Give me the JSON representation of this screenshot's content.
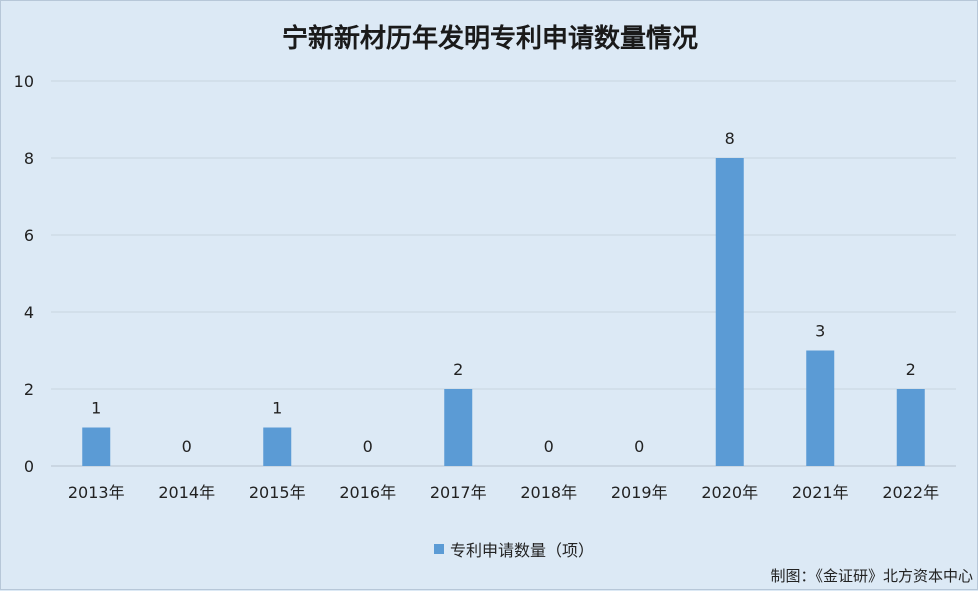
{
  "chart_data": {
    "type": "bar",
    "title": "宁新新材历年发明专利申请数量情况",
    "categories": [
      "2013年",
      "2014年",
      "2015年",
      "2016年",
      "2017年",
      "2018年",
      "2019年",
      "2020年",
      "2021年",
      "2022年"
    ],
    "series": [
      {
        "name": "专利申请数量（项）",
        "values": [
          1,
          0,
          1,
          0,
          2,
          0,
          0,
          8,
          3,
          2
        ],
        "color": "#5b9bd5"
      }
    ],
    "ylim": [
      0,
      10
    ],
    "yticks": [
      0,
      2,
      4,
      6,
      8,
      10
    ],
    "grid": true,
    "legend": "bottom-center",
    "data_labels": true
  },
  "credit": "制图：《金证研》北方资本中心"
}
